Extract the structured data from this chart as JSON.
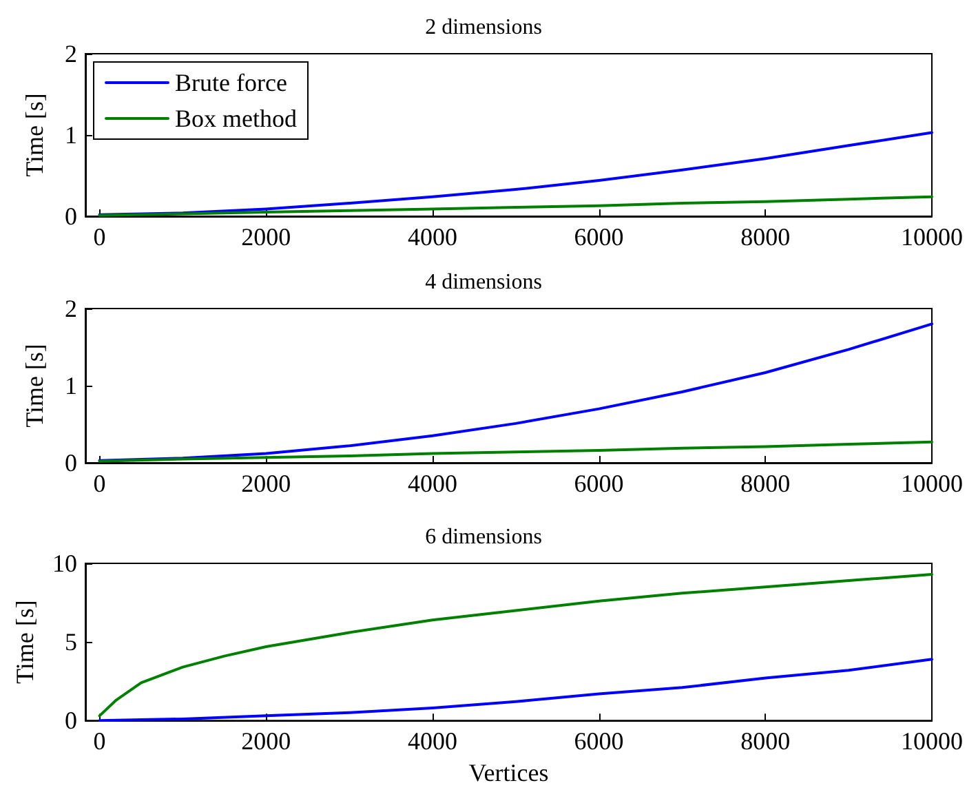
{
  "chart_data": [
    {
      "type": "line",
      "title": "2 dimensions",
      "ylabel": "Time [s]",
      "legend": "top left",
      "xlim": [
        -170,
        10000
      ],
      "xticks": [
        0,
        2000,
        4000,
        6000,
        8000,
        10000
      ],
      "ylim": [
        0,
        2
      ],
      "yticks": [
        0,
        1,
        2
      ],
      "x": [
        0,
        1000,
        2000,
        3000,
        4000,
        5000,
        6000,
        7000,
        8000,
        9000,
        10000
      ],
      "series": [
        {
          "name": "Brute force",
          "color": "#0000ff",
          "values": [
            0.02,
            0.04,
            0.09,
            0.16,
            0.24,
            0.33,
            0.44,
            0.57,
            0.71,
            0.87,
            1.03
          ]
        },
        {
          "name": "Box method",
          "color": "#008000",
          "values": [
            0.01,
            0.03,
            0.05,
            0.07,
            0.09,
            0.11,
            0.13,
            0.16,
            0.18,
            0.21,
            0.24
          ]
        }
      ]
    },
    {
      "type": "line",
      "title": "4 dimensions",
      "ylabel": "Time [s]",
      "xlim": [
        -170,
        10000
      ],
      "xticks": [
        0,
        2000,
        4000,
        6000,
        8000,
        10000
      ],
      "ylim": [
        0,
        2
      ],
      "yticks": [
        0,
        1,
        2
      ],
      "x": [
        0,
        1000,
        2000,
        3000,
        4000,
        5000,
        6000,
        7000,
        8000,
        9000,
        10000
      ],
      "series": [
        {
          "color": "#0000ff",
          "values": [
            0.03,
            0.06,
            0.12,
            0.22,
            0.35,
            0.51,
            0.7,
            0.92,
            1.17,
            1.47,
            1.8
          ]
        },
        {
          "color": "#008000",
          "values": [
            0.02,
            0.05,
            0.07,
            0.09,
            0.12,
            0.14,
            0.16,
            0.19,
            0.21,
            0.24,
            0.27
          ]
        }
      ]
    },
    {
      "type": "line",
      "title": "6 dimensions",
      "xlabel": "Vertices",
      "ylabel": "Time [s]",
      "xlim": [
        -170,
        10000
      ],
      "xticks": [
        0,
        2000,
        4000,
        6000,
        8000,
        10000
      ],
      "ylim": [
        0,
        10
      ],
      "yticks": [
        0,
        5,
        10
      ],
      "x": [
        0,
        1000,
        2000,
        3000,
        4000,
        5000,
        6000,
        7000,
        8000,
        9000,
        10000
      ],
      "series": [
        {
          "color": "#0000ff",
          "values": [
            0,
            0.1,
            0.3,
            0.5,
            0.8,
            1.2,
            1.7,
            2.1,
            2.7,
            3.2,
            3.9
          ]
        },
        {
          "color": "#008000",
          "x": [
            0,
            200,
            500,
            1000,
            1500,
            2000,
            3000,
            4000,
            5000,
            6000,
            7000,
            8000,
            9000,
            10000
          ],
          "values": [
            0.3,
            1.3,
            2.4,
            3.4,
            4.1,
            4.7,
            5.6,
            6.4,
            7.0,
            7.6,
            8.1,
            8.5,
            8.9,
            9.3
          ]
        }
      ]
    }
  ]
}
